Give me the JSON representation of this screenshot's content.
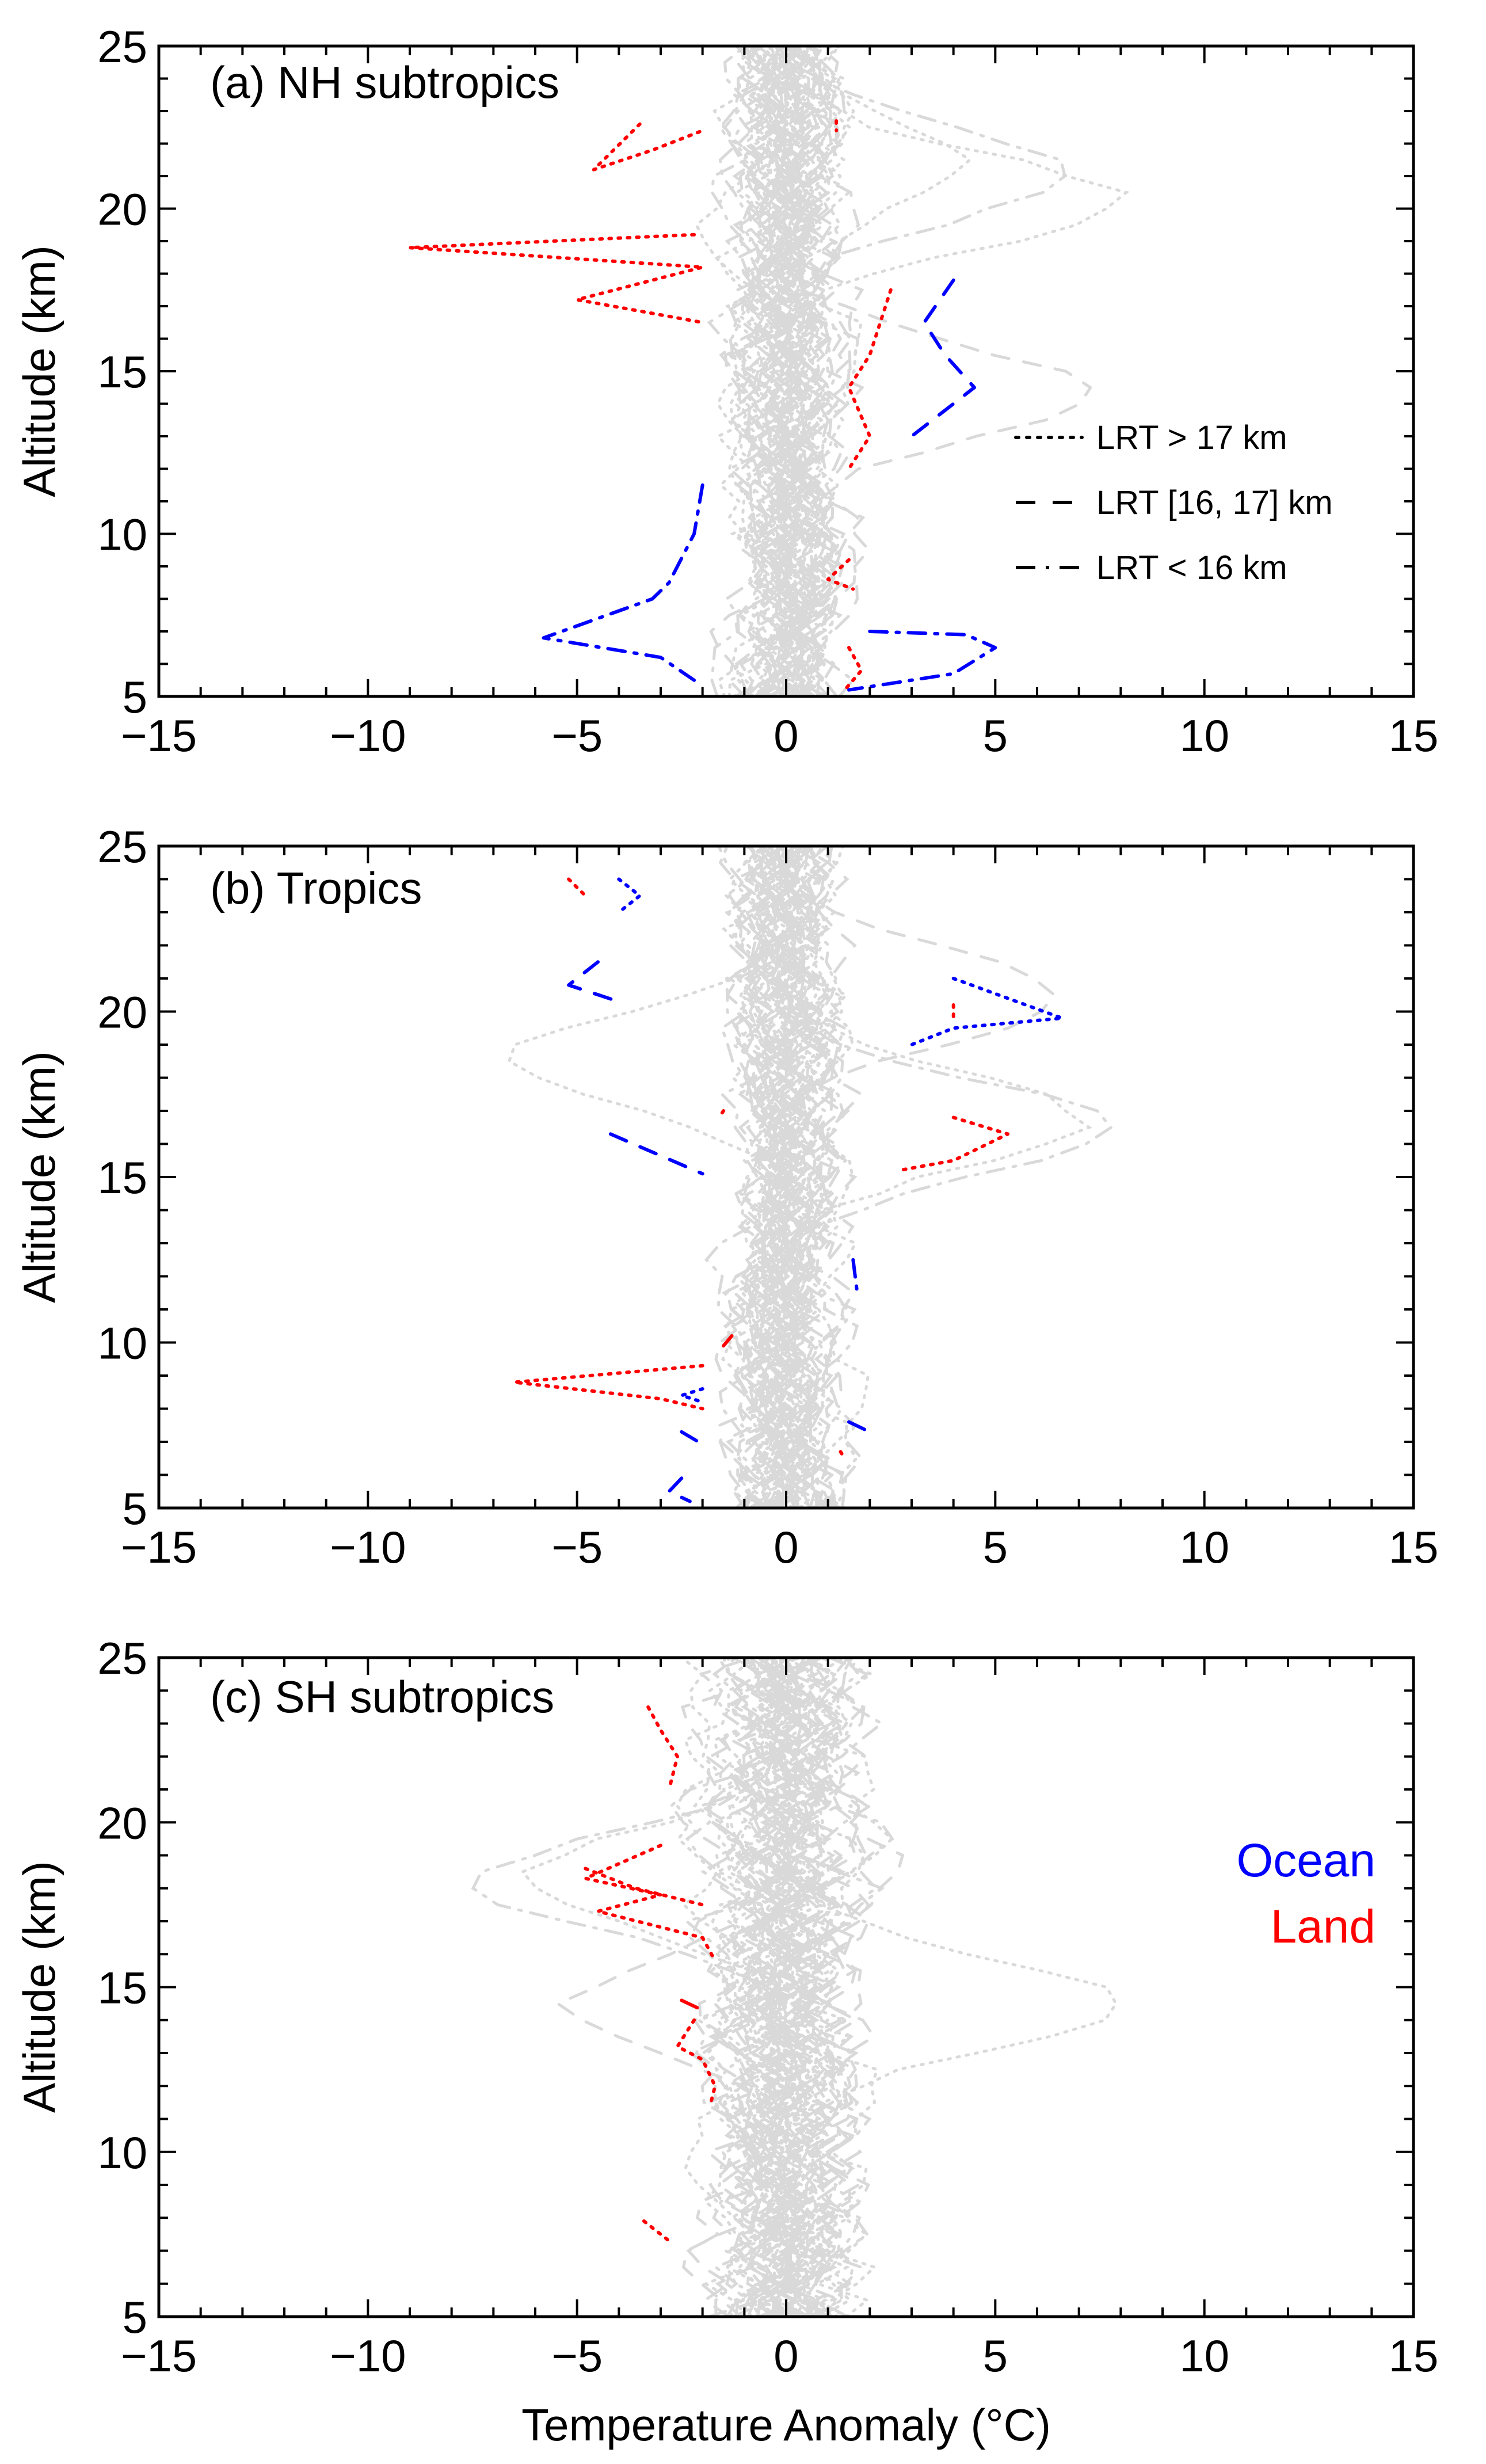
{
  "chart_data": {
    "type": "line",
    "xlabel": "Temperature Anomaly (°C)",
    "ylabel": "Altitude (km)",
    "xlim": [
      -15,
      15
    ],
    "ylim": [
      5,
      25
    ],
    "xticks": [
      -15,
      -10,
      -5,
      0,
      5,
      10,
      15
    ],
    "yticks": [
      5,
      10,
      15,
      20,
      25
    ],
    "line_style_legend": [
      {
        "label": "LRT > 17 km",
        "style": "dotted"
      },
      {
        "label": "LRT [16, 17] km",
        "style": "dashed"
      },
      {
        "label": "LRT < 16 km",
        "style": "dashdot"
      }
    ],
    "color_key": [
      {
        "label": "Ocean",
        "color": "#0000ff"
      },
      {
        "label": "Land",
        "color": "#ff0000"
      }
    ],
    "background_profiles": {
      "count_per_panel": 60,
      "color": "#d9d9d9",
      "note": "individual profiles in light gray"
    },
    "panels": [
      {
        "title": "(a) NH subtropics",
        "highlight_profiles": [
          {
            "surface": "Land",
            "style": "dotted",
            "points": [
              [
                -3.5,
                22.6
              ],
              [
                -4.6,
                21.2
              ],
              [
                -3.2,
                21.8
              ],
              [
                -2.0,
                22.4
              ]
            ]
          },
          {
            "surface": "Land",
            "style": "dotted",
            "points": [
              [
                -2.2,
                19.2
              ],
              [
                -9.0,
                18.8
              ],
              [
                -2.0,
                18.2
              ],
              [
                -5.0,
                17.2
              ],
              [
                -2.0,
                16.5
              ]
            ]
          },
          {
            "surface": "Land",
            "style": "dotted",
            "points": [
              [
                1.2,
                22.7
              ],
              [
                1.2,
                22.4
              ]
            ]
          },
          {
            "surface": "Land",
            "style": "dotted",
            "points": [
              [
                2.5,
                17.5
              ],
              [
                2.0,
                15.5
              ],
              [
                1.5,
                14.5
              ],
              [
                2.0,
                13.0
              ],
              [
                1.5,
                12.0
              ]
            ]
          },
          {
            "surface": "Land",
            "style": "dotted",
            "points": [
              [
                1.5,
                9.2
              ],
              [
                1.0,
                8.6
              ],
              [
                1.6,
                8.3
              ]
            ]
          },
          {
            "surface": "Land",
            "style": "dotted",
            "points": [
              [
                1.5,
                6.5
              ],
              [
                1.8,
                5.8
              ],
              [
                1.4,
                5.2
              ]
            ]
          },
          {
            "surface": "Ocean",
            "style": "dashed",
            "points": [
              [
                4.0,
                17.8
              ],
              [
                3.3,
                16.5
              ],
              [
                3.8,
                15.5
              ],
              [
                4.5,
                14.5
              ],
              [
                3.0,
                13.0
              ]
            ]
          },
          {
            "surface": "Ocean",
            "style": "dashdot",
            "points": [
              [
                -2.0,
                11.5
              ],
              [
                -2.2,
                10.0
              ],
              [
                -2.8,
                8.5
              ],
              [
                -3.2,
                8.0
              ],
              [
                -5.8,
                6.8
              ],
              [
                -3.0,
                6.2
              ],
              [
                -2.2,
                5.5
              ]
            ]
          },
          {
            "surface": "Ocean",
            "style": "dashdot",
            "points": [
              [
                2.0,
                7.0
              ],
              [
                4.3,
                6.9
              ],
              [
                5.0,
                6.5
              ],
              [
                4.0,
                5.7
              ],
              [
                1.5,
                5.2
              ]
            ]
          }
        ]
      },
      {
        "title": "(b) Tropics",
        "highlight_profiles": [
          {
            "surface": "Land",
            "style": "dotted",
            "points": [
              [
                -5.2,
                24.0
              ],
              [
                -4.8,
                23.5
              ]
            ]
          },
          {
            "surface": "Ocean",
            "style": "dotted",
            "points": [
              [
                -4.0,
                24.0
              ],
              [
                -3.5,
                23.5
              ],
              [
                -4.0,
                23.0
              ]
            ]
          },
          {
            "surface": "Ocean",
            "style": "dashed",
            "points": [
              [
                -4.5,
                21.5
              ],
              [
                -5.2,
                20.8
              ],
              [
                -4.0,
                20.3
              ]
            ]
          },
          {
            "surface": "Ocean",
            "style": "dotted",
            "points": [
              [
                4.0,
                21.0
              ],
              [
                6.6,
                19.8
              ],
              [
                4.0,
                19.5
              ],
              [
                3.0,
                19.0
              ]
            ]
          },
          {
            "surface": "Land",
            "style": "dotted",
            "points": [
              [
                4.0,
                20.2
              ],
              [
                4.0,
                19.7
              ]
            ]
          },
          {
            "surface": "Land",
            "style": "dotted",
            "points": [
              [
                -1.5,
                17.0
              ],
              [
                -1.6,
                16.8
              ]
            ]
          },
          {
            "surface": "Ocean",
            "style": "dashed",
            "points": [
              [
                -4.2,
                16.3
              ],
              [
                -2.0,
                15.1
              ]
            ]
          },
          {
            "surface": "Land",
            "style": "dotted",
            "points": [
              [
                4.0,
                16.8
              ],
              [
                5.3,
                16.3
              ],
              [
                4.0,
                15.5
              ],
              [
                2.7,
                15.2
              ]
            ]
          },
          {
            "surface": "Ocean",
            "style": "dashdot",
            "points": [
              [
                1.6,
                12.5
              ],
              [
                1.7,
                11.5
              ]
            ]
          },
          {
            "surface": "Land",
            "style": "dashdot",
            "points": [
              [
                -1.3,
                10.2
              ],
              [
                -1.5,
                9.9
              ]
            ]
          },
          {
            "surface": "Land",
            "style": "dotted",
            "points": [
              [
                -2.0,
                9.3
              ],
              [
                -6.5,
                8.8
              ],
              [
                -3.0,
                8.3
              ],
              [
                -2.0,
                8.0
              ]
            ]
          },
          {
            "surface": "Ocean",
            "style": "dotted",
            "points": [
              [
                -2.0,
                8.6
              ],
              [
                -2.5,
                8.4
              ],
              [
                -2.0,
                8.2
              ]
            ]
          },
          {
            "surface": "Ocean",
            "style": "dashed",
            "points": [
              [
                1.5,
                7.6
              ],
              [
                2.0,
                7.3
              ]
            ]
          },
          {
            "surface": "Ocean",
            "style": "dashed",
            "points": [
              [
                -2.5,
                7.3
              ],
              [
                -2.1,
                7.0
              ]
            ]
          },
          {
            "surface": "Land",
            "style": "dotted",
            "points": [
              [
                1.3,
                6.7
              ],
              [
                1.4,
                6.5
              ]
            ]
          },
          {
            "surface": "Ocean",
            "style": "dashed",
            "points": [
              [
                -2.5,
                5.9
              ],
              [
                -2.8,
                5.5
              ],
              [
                -2.3,
                5.2
              ]
            ]
          }
        ]
      },
      {
        "title": "(c) SH subtropics",
        "highlight_profiles": [
          {
            "surface": "Land",
            "style": "dotted",
            "points": [
              [
                -3.3,
                23.5
              ],
              [
                -3.0,
                22.8
              ],
              [
                -2.6,
                22.0
              ],
              [
                -2.8,
                21.0
              ]
            ]
          },
          {
            "surface": "Land",
            "style": "dotted",
            "points": [
              [
                -3.0,
                19.3
              ],
              [
                -4.8,
                18.3
              ],
              [
                -3.0,
                17.8
              ],
              [
                -4.5,
                17.3
              ],
              [
                -2.0,
                16.5
              ],
              [
                -1.7,
                15.8
              ]
            ]
          },
          {
            "surface": "Land",
            "style": "dotted",
            "points": [
              [
                -4.8,
                18.6
              ],
              [
                -3.6,
                18.0
              ],
              [
                -2.0,
                17.5
              ]
            ]
          },
          {
            "surface": "Land",
            "style": "dashed",
            "points": [
              [
                -2.5,
                14.6
              ],
              [
                -2.0,
                14.3
              ]
            ]
          },
          {
            "surface": "Land",
            "style": "dotted",
            "points": [
              [
                -2.2,
                14.0
              ],
              [
                -2.6,
                13.2
              ],
              [
                -2.0,
                12.8
              ],
              [
                -1.7,
                12.0
              ],
              [
                -1.8,
                11.5
              ]
            ]
          },
          {
            "surface": "Land",
            "style": "dotted",
            "points": [
              [
                -3.4,
                7.9
              ],
              [
                -2.8,
                7.3
              ]
            ]
          }
        ]
      }
    ]
  }
}
